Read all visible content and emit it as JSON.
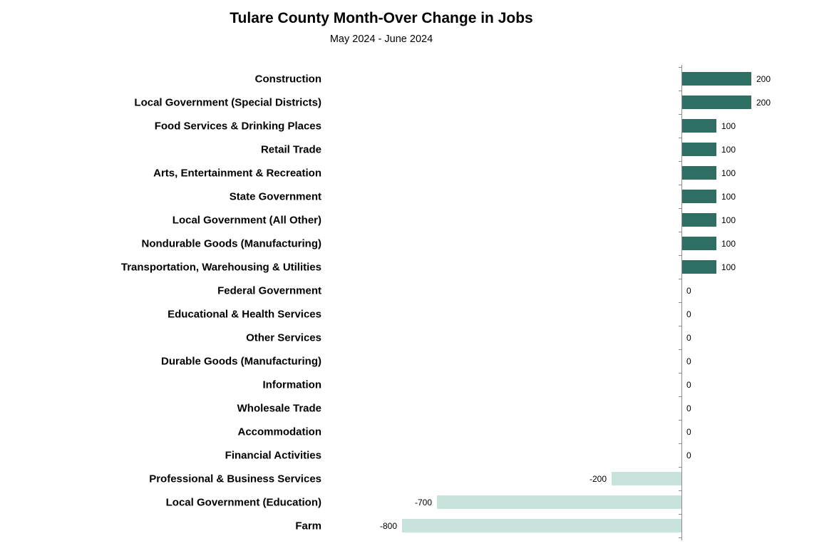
{
  "header": {
    "title": "Tulare County Month-Over Change in Jobs",
    "subtitle": "May 2024 - June 2024"
  },
  "colors": {
    "positive_bar": "#2F6E62",
    "negative_bar": "#C7E3DB",
    "axis": "#8c8c8c"
  },
  "chart_data": {
    "type": "bar",
    "orientation": "horizontal",
    "title": "Tulare County Month-Over Change in Jobs",
    "subtitle": "May 2024 - June 2024",
    "xlabel": "",
    "ylabel": "",
    "xlim": [
      -800,
      200
    ],
    "grid": false,
    "legend": false,
    "value_labels": true,
    "categories": [
      "Construction",
      "Local Government (Special Districts)",
      "Food Services & Drinking Places",
      "Retail Trade",
      "Arts, Entertainment & Recreation",
      "State Government",
      "Local Government (All Other)",
      "Nondurable Goods (Manufacturing)",
      "Transportation, Warehousing & Utilities",
      "Federal Government",
      "Educational & Health Services",
      "Other Services",
      "Durable Goods (Manufacturing)",
      "Information",
      "Wholesale Trade",
      "Accommodation",
      "Financial Activities",
      "Professional & Business Services",
      "Local Government (Education)",
      "Farm"
    ],
    "values": [
      200,
      200,
      100,
      100,
      100,
      100,
      100,
      100,
      100,
      0,
      0,
      0,
      0,
      0,
      0,
      0,
      0,
      -200,
      -700,
      -800
    ]
  }
}
